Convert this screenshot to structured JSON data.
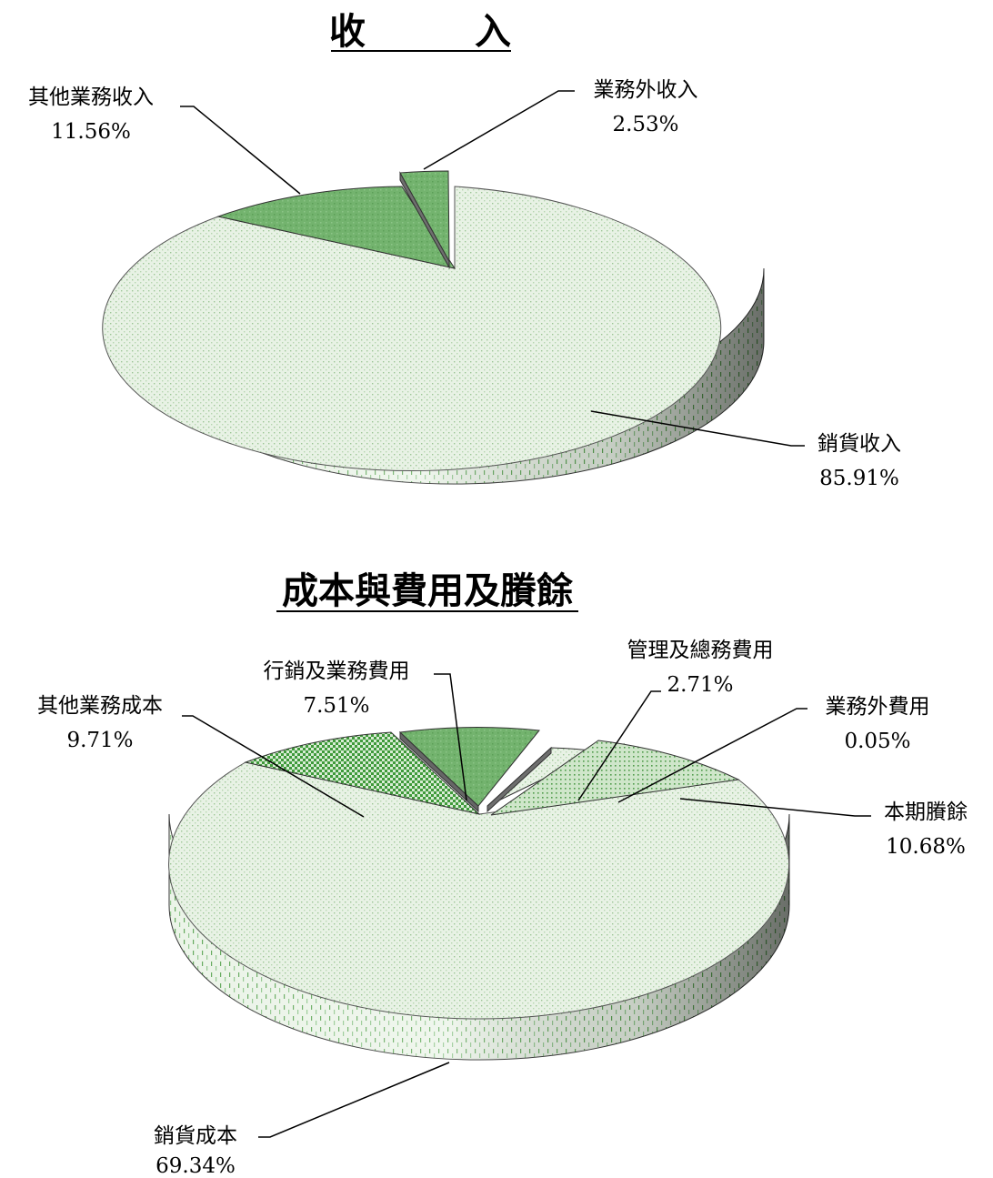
{
  "chart_data": [
    {
      "type": "pie",
      "title": "收　　　入",
      "slices": [
        {
          "label": "銷貨收入",
          "value": 85.91,
          "value_text": "85.91%"
        },
        {
          "label": "其他業務收入",
          "value": 11.56,
          "value_text": "11.56%"
        },
        {
          "label": "業務外收入",
          "value": 2.53,
          "value_text": "2.53%"
        }
      ]
    },
    {
      "type": "pie",
      "title": "成本與費用及賸餘",
      "slices": [
        {
          "label": "銷貨成本",
          "value": 69.34,
          "value_text": "69.34%"
        },
        {
          "label": "其他業務成本",
          "value": 9.71,
          "value_text": "9.71%"
        },
        {
          "label": "行銷及業務費用",
          "value": 7.51,
          "value_text": "7.51%"
        },
        {
          "label": "管理及總務費用",
          "value": 2.71,
          "value_text": "2.71%"
        },
        {
          "label": "業務外費用",
          "value": 0.05,
          "value_text": "0.05%"
        },
        {
          "label": "本期賸餘",
          "value": 10.68,
          "value_text": "10.68%"
        }
      ]
    }
  ],
  "colors": {
    "light_fill": "#e6f1e3",
    "light_dot": "#9cc596",
    "mid_fill": "#75b571",
    "dark_green": "#2f8a2f",
    "side_shade": "#777777",
    "side_light": "#e4efe1",
    "edge": "#222222"
  }
}
